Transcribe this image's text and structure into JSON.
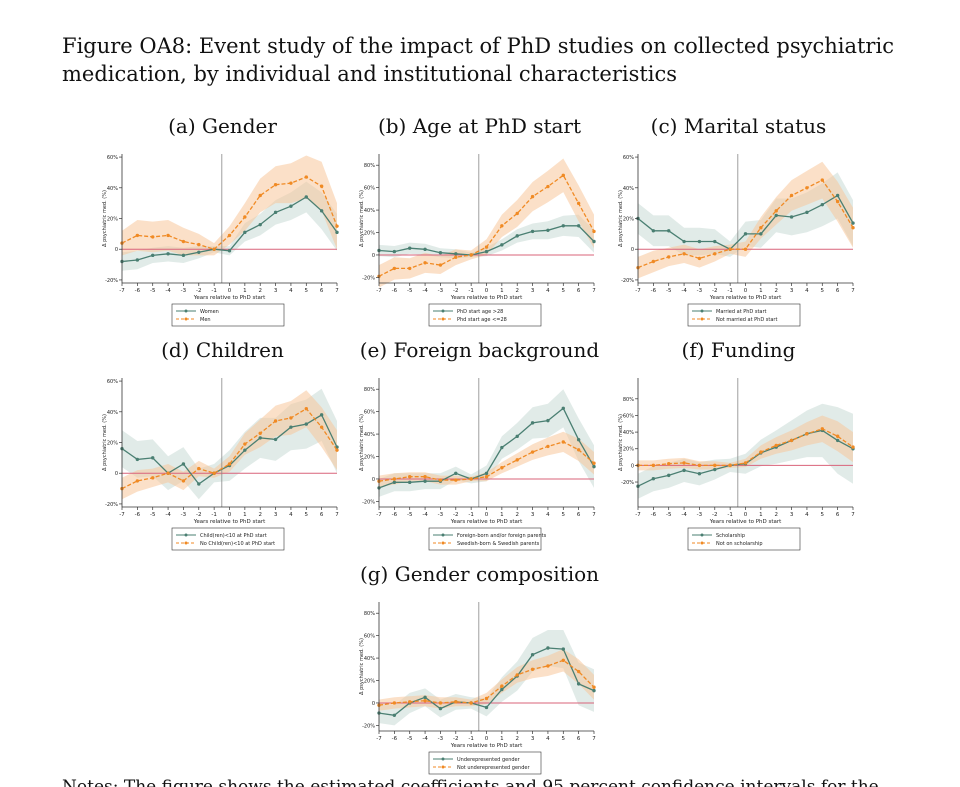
{
  "figure_title": "Figure OA8: Event study of the impact of PhD studies on collected psychiatric medication, by individual and institutional characteristics",
  "notes_text": "Notes: The figure shows the estimated coefficients and 95 percent confidence intervals for the",
  "colors": {
    "series1": "#4a7f72",
    "series2": "#f08a24",
    "band1": "#c9dbd6",
    "band2": "#f8c79b",
    "zero_line": "#d9637a",
    "vline": "#888888"
  },
  "chart_data": [
    {
      "id": "a",
      "type": "line",
      "title": "(a) Gender",
      "xlabel": "Years relative to PhD start",
      "ylabel": "Δ psychiatric med. (%)",
      "x": [
        -7,
        -6,
        -5,
        -4,
        -3,
        -2,
        -1,
        0,
        1,
        2,
        3,
        4,
        5,
        6,
        7
      ],
      "ylim": [
        -0.22,
        0.62
      ],
      "yticks": [
        -0.2,
        0,
        0.2,
        0.4,
        0.6
      ],
      "yticklabels": [
        "-20%",
        "0",
        "20%",
        "40%",
        "60%"
      ],
      "series": [
        {
          "name": "Women",
          "values": [
            -0.08,
            -0.07,
            -0.04,
            -0.03,
            -0.04,
            -0.02,
            0.0,
            -0.01,
            0.11,
            0.16,
            0.24,
            0.28,
            0.34,
            0.25,
            0.11
          ],
          "ci": [
            0.06,
            0.06,
            0.05,
            0.05,
            0.05,
            0.04,
            0.02,
            0.03,
            0.06,
            0.07,
            0.08,
            0.09,
            0.1,
            0.12,
            0.12
          ]
        },
        {
          "name": "Men",
          "values": [
            0.04,
            0.09,
            0.08,
            0.09,
            0.05,
            0.03,
            0.0,
            0.09,
            0.21,
            0.35,
            0.42,
            0.43,
            0.47,
            0.41,
            0.15
          ],
          "ci": [
            0.08,
            0.1,
            0.1,
            0.1,
            0.09,
            0.07,
            0.04,
            0.06,
            0.09,
            0.11,
            0.12,
            0.13,
            0.14,
            0.16,
            0.15
          ]
        }
      ]
    },
    {
      "id": "b",
      "type": "line",
      "title": "(b) Age at PhD start",
      "xlabel": "Years relative to PhD start",
      "ylabel": "Δ psychiatric med. (%)",
      "x": [
        -7,
        -6,
        -5,
        -4,
        -3,
        -2,
        -1,
        0,
        1,
        2,
        3,
        4,
        5,
        6,
        7
      ],
      "ylim": [
        -0.25,
        0.9
      ],
      "yticks": [
        -0.2,
        0,
        0.2,
        0.4,
        0.6,
        0.8
      ],
      "yticklabels": [
        "-20%",
        "0",
        "20%",
        "40%",
        "60%",
        "80%"
      ],
      "series": [
        {
          "name": "PhD start age >28",
          "values": [
            0.04,
            0.03,
            0.06,
            0.05,
            0.02,
            0.01,
            0.0,
            0.03,
            0.09,
            0.17,
            0.21,
            0.22,
            0.26,
            0.26,
            0.12
          ],
          "ci": [
            0.05,
            0.05,
            0.05,
            0.05,
            0.04,
            0.04,
            0.02,
            0.04,
            0.05,
            0.06,
            0.07,
            0.08,
            0.09,
            0.1,
            0.1
          ]
        },
        {
          "name": "Phd start age <=28",
          "values": [
            -0.19,
            -0.12,
            -0.12,
            -0.07,
            -0.09,
            -0.02,
            0.0,
            0.07,
            0.26,
            0.37,
            0.52,
            0.61,
            0.71,
            0.46,
            0.21
          ],
          "ci": [
            0.1,
            0.1,
            0.09,
            0.09,
            0.08,
            0.07,
            0.04,
            0.07,
            0.1,
            0.12,
            0.13,
            0.14,
            0.15,
            0.16,
            0.15
          ]
        }
      ]
    },
    {
      "id": "c",
      "type": "line",
      "title": "(c) Marital status",
      "xlabel": "Years relative to PhD start",
      "ylabel": "Δ psychiatric med. (%)",
      "x": [
        -7,
        -6,
        -5,
        -4,
        -3,
        -2,
        -1,
        0,
        1,
        2,
        3,
        4,
        5,
        6,
        7
      ],
      "ylim": [
        -0.22,
        0.62
      ],
      "yticks": [
        -0.2,
        0,
        0.2,
        0.4,
        0.6
      ],
      "yticklabels": [
        "-20%",
        "0",
        "20%",
        "40%",
        "60%"
      ],
      "series": [
        {
          "name": "Married at PhD start",
          "values": [
            0.2,
            0.12,
            0.12,
            0.05,
            0.05,
            0.05,
            0.0,
            0.1,
            0.1,
            0.22,
            0.21,
            0.24,
            0.29,
            0.35,
            0.17
          ],
          "ci": [
            0.1,
            0.1,
            0.1,
            0.09,
            0.09,
            0.08,
            0.05,
            0.08,
            0.09,
            0.11,
            0.12,
            0.13,
            0.14,
            0.15,
            0.15
          ]
        },
        {
          "name": "Not married at PhD start",
          "values": [
            -0.12,
            -0.08,
            -0.05,
            -0.03,
            -0.06,
            -0.03,
            0.0,
            0.0,
            0.14,
            0.25,
            0.35,
            0.4,
            0.45,
            0.31,
            0.14
          ],
          "ci": [
            0.07,
            0.07,
            0.06,
            0.06,
            0.06,
            0.05,
            0.03,
            0.05,
            0.07,
            0.09,
            0.1,
            0.11,
            0.12,
            0.13,
            0.13
          ]
        }
      ]
    },
    {
      "id": "d",
      "type": "line",
      "title": "(d) Children",
      "xlabel": "Years relative to PhD start",
      "ylabel": "Δ psychiatric med. (%)",
      "x": [
        -7,
        -6,
        -5,
        -4,
        -3,
        -2,
        -1,
        0,
        1,
        2,
        3,
        4,
        5,
        6,
        7
      ],
      "ylim": [
        -0.22,
        0.62
      ],
      "yticks": [
        -0.2,
        0,
        0.2,
        0.4,
        0.6
      ],
      "yticklabels": [
        "-20%",
        "0",
        "20%",
        "40%",
        "60%"
      ],
      "series": [
        {
          "name": "Child(ren)<10 at PhD start",
          "values": [
            0.16,
            0.09,
            0.1,
            0.0,
            0.06,
            -0.07,
            0.0,
            0.05,
            0.15,
            0.23,
            0.22,
            0.3,
            0.32,
            0.38,
            0.17
          ],
          "ci": [
            0.12,
            0.12,
            0.12,
            0.11,
            0.11,
            0.1,
            0.06,
            0.1,
            0.12,
            0.13,
            0.14,
            0.15,
            0.16,
            0.17,
            0.17
          ]
        },
        {
          "name": "No Child(ren)<10 at PhD start",
          "values": [
            -0.1,
            -0.05,
            -0.03,
            0.0,
            -0.05,
            0.03,
            0.0,
            0.06,
            0.19,
            0.26,
            0.34,
            0.36,
            0.42,
            0.3,
            0.15
          ],
          "ci": [
            0.07,
            0.07,
            0.06,
            0.06,
            0.06,
            0.05,
            0.03,
            0.05,
            0.07,
            0.09,
            0.1,
            0.11,
            0.12,
            0.13,
            0.13
          ]
        }
      ]
    },
    {
      "id": "e",
      "type": "line",
      "title": "(e) Foreign background",
      "xlabel": "Years relative to PhD start",
      "ylabel": "Δ psychiatric med. (%)",
      "x": [
        -7,
        -6,
        -5,
        -4,
        -3,
        -2,
        -1,
        0,
        1,
        2,
        3,
        4,
        5,
        6,
        7
      ],
      "ylim": [
        -0.25,
        0.9
      ],
      "yticks": [
        -0.2,
        0,
        0.2,
        0.4,
        0.6,
        0.8
      ],
      "yticklabels": [
        "-20%",
        "0",
        "20%",
        "40%",
        "60%",
        "80%"
      ],
      "series": [
        {
          "name": "Foreign-born and/or foreign parents",
          "values": [
            -0.08,
            -0.03,
            -0.03,
            -0.02,
            -0.02,
            0.05,
            0.0,
            0.05,
            0.28,
            0.38,
            0.5,
            0.52,
            0.63,
            0.35,
            0.11
          ],
          "ci": [
            0.08,
            0.08,
            0.08,
            0.07,
            0.07,
            0.06,
            0.04,
            0.07,
            0.1,
            0.12,
            0.14,
            0.15,
            0.17,
            0.19,
            0.19
          ]
        },
        {
          "name": "Swedish-born & Swedish parents",
          "values": [
            -0.02,
            0.0,
            0.02,
            0.02,
            -0.01,
            -0.01,
            0.0,
            0.02,
            0.1,
            0.17,
            0.24,
            0.29,
            0.33,
            0.26,
            0.14
          ],
          "ci": [
            0.05,
            0.05,
            0.04,
            0.04,
            0.04,
            0.04,
            0.02,
            0.04,
            0.05,
            0.06,
            0.07,
            0.08,
            0.09,
            0.1,
            0.1
          ]
        }
      ]
    },
    {
      "id": "f",
      "type": "line",
      "title": "(f) Funding",
      "xlabel": "Years relative to PhD start",
      "ylabel": "Δ psychiatric med. (%)",
      "x": [
        -7,
        -6,
        -5,
        -4,
        -3,
        -2,
        -1,
        0,
        1,
        2,
        3,
        4,
        5,
        6,
        7
      ],
      "ylim": [
        -0.5,
        1.05
      ],
      "yticks": [
        -0.2,
        0,
        0.2,
        0.4,
        0.6,
        0.8
      ],
      "yticklabels": [
        "-20%",
        "0",
        "20%",
        "40%",
        "60%",
        "80%"
      ],
      "series": [
        {
          "name": "Scholarship",
          "values": [
            -0.25,
            -0.16,
            -0.12,
            -0.06,
            -0.1,
            -0.05,
            0.0,
            0.02,
            0.15,
            0.22,
            0.3,
            0.38,
            0.42,
            0.3,
            0.2
          ],
          "ci": [
            0.15,
            0.15,
            0.15,
            0.14,
            0.14,
            0.12,
            0.08,
            0.12,
            0.16,
            0.2,
            0.24,
            0.28,
            0.32,
            0.4,
            0.42
          ]
        },
        {
          "name": "Not on scholarship",
          "values": [
            0.0,
            0.0,
            0.02,
            0.03,
            0.0,
            0.0,
            0.0,
            0.03,
            0.16,
            0.24,
            0.3,
            0.38,
            0.44,
            0.35,
            0.22
          ],
          "ci": [
            0.06,
            0.06,
            0.06,
            0.06,
            0.05,
            0.05,
            0.03,
            0.05,
            0.08,
            0.1,
            0.12,
            0.14,
            0.16,
            0.18,
            0.18
          ]
        }
      ]
    },
    {
      "id": "g",
      "type": "line",
      "title": "(g) Gender composition",
      "xlabel": "Years relative to PhD start",
      "ylabel": "Δ psychiatric med. (%)",
      "x": [
        -7,
        -6,
        -5,
        -4,
        -3,
        -2,
        -1,
        0,
        1,
        2,
        3,
        4,
        5,
        6,
        7
      ],
      "ylim": [
        -0.25,
        0.9
      ],
      "yticks": [
        -0.2,
        0,
        0.2,
        0.4,
        0.6,
        0.8
      ],
      "yticklabels": [
        "-20%",
        "0",
        "20%",
        "40%",
        "60%",
        "80%"
      ],
      "series": [
        {
          "name": "Underepresented gender",
          "values": [
            -0.09,
            -0.11,
            0.0,
            0.05,
            -0.05,
            0.01,
            0.0,
            -0.04,
            0.12,
            0.24,
            0.43,
            0.49,
            0.48,
            0.17,
            0.11
          ],
          "ci": [
            0.09,
            0.09,
            0.09,
            0.08,
            0.08,
            0.07,
            0.05,
            0.08,
            0.11,
            0.13,
            0.15,
            0.16,
            0.17,
            0.19,
            0.19
          ]
        },
        {
          "name": "Not underepresented gender",
          "values": [
            -0.02,
            0.0,
            0.01,
            0.02,
            0.0,
            0.01,
            0.0,
            0.04,
            0.15,
            0.25,
            0.3,
            0.33,
            0.38,
            0.28,
            0.14
          ],
          "ci": [
            0.05,
            0.05,
            0.05,
            0.05,
            0.05,
            0.04,
            0.03,
            0.05,
            0.06,
            0.07,
            0.08,
            0.09,
            0.1,
            0.11,
            0.11
          ]
        }
      ]
    }
  ]
}
